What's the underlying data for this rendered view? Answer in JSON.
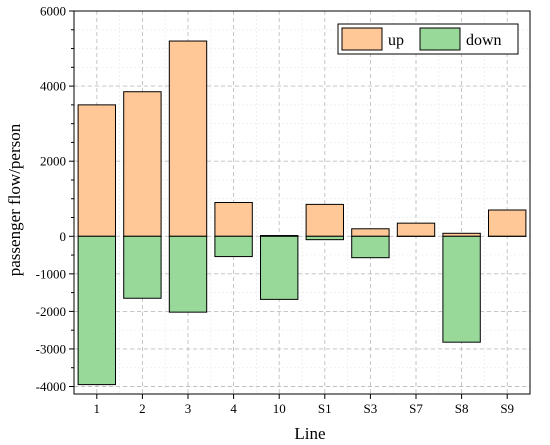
{
  "chart_data": {
    "type": "bar",
    "title": "",
    "xlabel": "Line",
    "ylabel": "passenger flow/person",
    "categories": [
      "1",
      "2",
      "3",
      "4",
      "10",
      "S1",
      "S3",
      "S7",
      "S8",
      "S9"
    ],
    "series": [
      {
        "name": "up",
        "values": [
          3500,
          3850,
          5200,
          900,
          20,
          850,
          200,
          350,
          80,
          700
        ]
      },
      {
        "name": "down",
        "values": [
          -3950,
          -1650,
          -2020,
          -540,
          -1680,
          -90,
          -570,
          0,
          -2820,
          0
        ]
      }
    ],
    "ylim": [
      -4200,
      6000
    ],
    "yticks": [
      -4000,
      -3000,
      -2000,
      -1000,
      0,
      2000,
      4000,
      6000
    ],
    "grid": true,
    "legend_position": "top-right",
    "colors": {
      "up": "#FFC896",
      "down": "#98D99A",
      "edge": "#000000",
      "grid": "#bfbfbf"
    }
  }
}
